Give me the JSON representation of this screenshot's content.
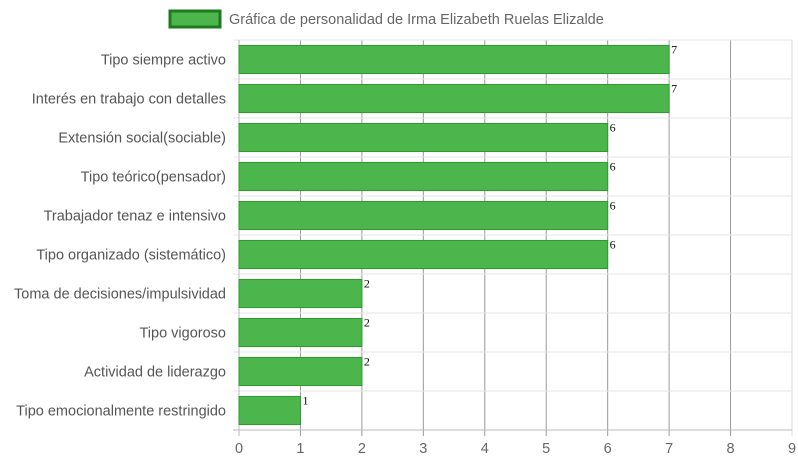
{
  "chart_data": {
    "type": "bar",
    "orientation": "horizontal",
    "categories": [
      "Tipo siempre activo",
      "Interés en trabajo con detalles",
      "Extensión social(sociable)",
      "Tipo teórico(pensador)",
      "Trabajador tenaz e intensivo",
      "Tipo organizado (sistemático)",
      "Toma de decisiones/impulsividad",
      "Tipo vigoroso",
      "Actividad de liderazgo",
      "Tipo emocionalmente restringido"
    ],
    "series": [
      {
        "name": "Gráfica de personalidad de Irma Elizabeth Ruelas Elizalde",
        "values": [
          7,
          7,
          6,
          6,
          6,
          6,
          2,
          2,
          2,
          1
        ]
      }
    ],
    "xlim": [
      0,
      9
    ],
    "xticks": [
      0,
      1,
      2,
      3,
      4,
      5,
      6,
      7,
      8,
      9
    ],
    "grid": true,
    "data_labels": true,
    "legend_position": "top-center",
    "colors": {
      "bar_fill": "#4cb64c",
      "bar_border": "#2e9a2e",
      "legend_border": "#1f7a1f"
    }
  }
}
